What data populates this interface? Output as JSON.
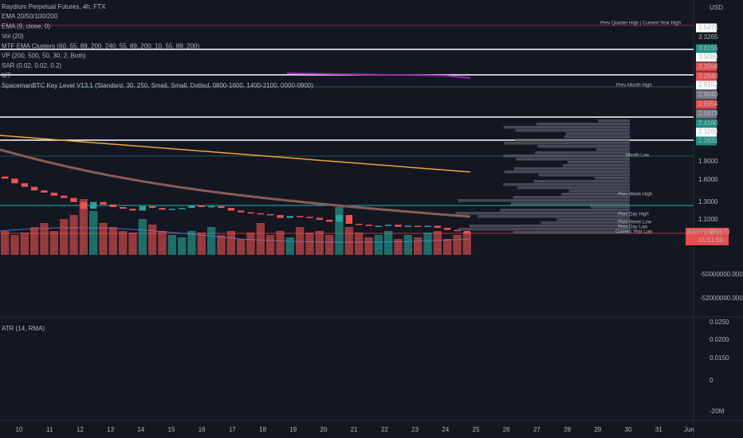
{
  "header": {
    "title": "Raydium Perpetual Futures, 4h, FTX"
  },
  "legend": [
    "EMA 20/50/100/200",
    "EMA (9, close, 0)",
    "Vol (20)",
    "MTF EMA Clusters (60, 55, 89, 200, 240, 55, 89, 200, 10, 55, 89, 200)",
    "VP (200, 500, 50, 30, 2, Both)",
    "SAR (0.02, 0.02, 0.2)",
    "MT",
    "SpacemanBTC Key Level V13.1 (Standard, 30, 250, Small, Small, Dotted, 0800-1600, 1400-2100, 0000-0900)"
  ],
  "atr_legend": "ATR (14, RMA)",
  "price_axis": {
    "currency": "USD",
    "labels": [
      {
        "text": "3.5474",
        "bg": "#ffffff",
        "fg": "#131722"
      },
      {
        "text": "3.3265",
        "bg": "#131722",
        "fg": "#d1d4dc"
      },
      {
        "text": "3.8155",
        "bg": "#1e8f80",
        "fg": "#ffffff"
      },
      {
        "text": "3.5089",
        "bg": "#ffffff",
        "fg": "#131722"
      },
      {
        "text": "3.3568",
        "bg": "#e84e4e",
        "fg": "#ffffff"
      },
      {
        "text": "3.2840",
        "bg": "#e84e4e",
        "fg": "#ffffff"
      },
      {
        "text": "2.9102",
        "bg": "#ffffff",
        "fg": "#131722"
      },
      {
        "text": "2.8040",
        "bg": "#787b86",
        "fg": "#ffffff"
      },
      {
        "text": "2.6954",
        "bg": "#e84e4e",
        "fg": "#ffffff"
      },
      {
        "text": "2.5673",
        "bg": "#787b86",
        "fg": "#ffffff"
      },
      {
        "text": "2.4160",
        "bg": "#1e8f80",
        "fg": "#ffffff"
      },
      {
        "text": "2.3269",
        "bg": "#ffffff",
        "fg": "#131722"
      },
      {
        "text": "2.2831",
        "bg": "#1e8f80",
        "fg": "#ffffff"
      },
      {
        "text": "1.9000",
        "bg": "none",
        "fg": "#b2b5be"
      },
      {
        "text": "1.6000",
        "bg": "none",
        "fg": "#b2b5be"
      },
      {
        "text": "1.3000",
        "bg": "none",
        "fg": "#b2b5be"
      },
      {
        "text": "1.1000",
        "bg": "none",
        "fg": "#b2b5be"
      }
    ]
  },
  "price_tag": {
    "symbol": "RAYPERP",
    "price": "0.9673",
    "countdown": "01:51:50"
  },
  "levels": [
    "Prev Quarter High | Current Year High",
    "Prev Month High",
    "Month Low",
    "Prev Week High",
    "Prev Day High",
    "Prev Week Low",
    "Prev Day Low",
    "Current Year Low"
  ],
  "lower_axis": [
    "-50000000.0000",
    "-52000000.0000"
  ],
  "atr_axis": [
    "0.0250",
    "0.0200",
    "0.0150",
    "0",
    "-20M"
  ],
  "dates": [
    "10",
    "11",
    "12",
    "13",
    "14",
    "15",
    "16",
    "17",
    "18",
    "19",
    "20",
    "21",
    "22",
    "23",
    "24",
    "25",
    "26",
    "27",
    "28",
    "29",
    "30",
    "31",
    "Jun"
  ],
  "chart": {
    "closes": [
      1.62,
      1.55,
      1.5,
      1.45,
      1.42,
      1.38,
      1.35,
      1.3,
      1.22,
      1.3,
      1.27,
      1.24,
      1.22,
      1.2,
      1.25,
      1.23,
      1.21,
      1.22,
      1.23,
      1.26,
      1.24,
      1.25,
      1.23,
      1.2,
      1.18,
      1.17,
      1.16,
      1.15,
      1.12,
      1.14,
      1.13,
      1.12,
      1.1,
      1.08,
      1.15,
      1.06,
      1.05,
      1.04,
      1.04,
      1.05,
      1.03,
      1.04,
      1.03,
      1.04,
      1.02,
      1.0,
      0.99,
      0.967
    ],
    "volumes": [
      30,
      25,
      28,
      35,
      40,
      30,
      45,
      50,
      70,
      55,
      40,
      35,
      30,
      28,
      45,
      38,
      30,
      25,
      22,
      30,
      28,
      35,
      25,
      30,
      20,
      28,
      40,
      25,
      30,
      22,
      35,
      28,
      30,
      25,
      60,
      35,
      28,
      22,
      25,
      30,
      20,
      25,
      22,
      28,
      30,
      20,
      25,
      28
    ]
  }
}
